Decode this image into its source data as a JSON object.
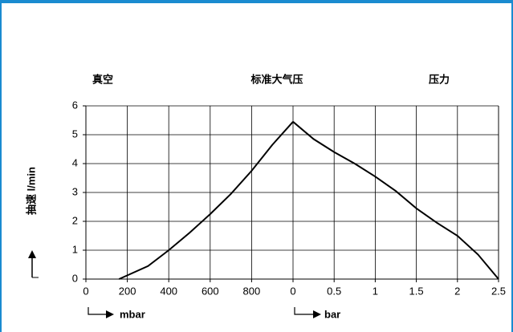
{
  "chart_data": [
    {
      "type": "line",
      "title": "真空",
      "xlabel": "mbar",
      "ylabel": "抽速 l/min",
      "x": [
        160,
        300,
        400,
        500,
        600,
        700,
        800,
        900,
        1000
      ],
      "values": [
        0,
        0.45,
        1.0,
        1.6,
        2.25,
        2.95,
        3.75,
        4.65,
        5.45
      ],
      "color": "#000000",
      "xlim": [
        0,
        1000
      ],
      "xticks": [
        0,
        200,
        400,
        600,
        800
      ],
      "ylim": [
        0,
        6
      ],
      "yticks": [
        0,
        1,
        2,
        3,
        4,
        5,
        6
      ],
      "grid": true
    },
    {
      "type": "line",
      "title": "压力",
      "annotation": "标准大气压",
      "xlabel": "bar",
      "x": [
        0,
        0.25,
        0.5,
        0.75,
        1,
        1.25,
        1.5,
        1.75,
        2,
        2.25,
        2.5
      ],
      "values": [
        5.45,
        4.85,
        4.4,
        4.0,
        3.55,
        3.05,
        2.45,
        1.95,
        1.5,
        0.85,
        0
      ],
      "color": "#000000",
      "xlim": [
        0,
        2.5
      ],
      "xticks": [
        0,
        0.5,
        1,
        1.5,
        2,
        2.5
      ],
      "ylim": [
        0,
        6
      ],
      "grid": true
    }
  ]
}
